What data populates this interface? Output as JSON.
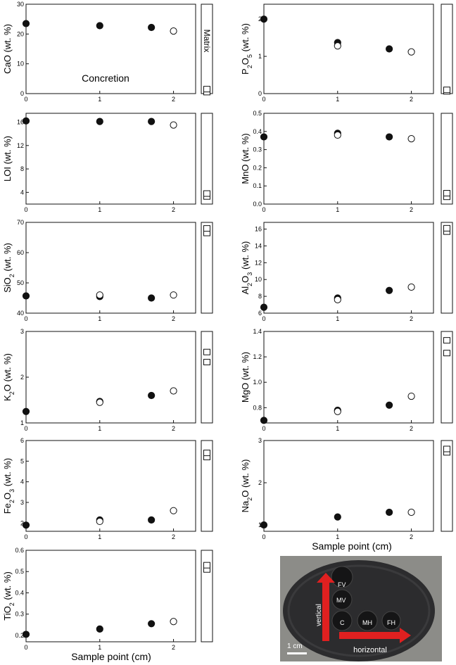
{
  "colors": {
    "filled": "#111111",
    "open": "#ffffff",
    "stroke": "#111111",
    "photo_bg": "#8c8c88",
    "arrow": "#e02020"
  },
  "labels": {
    "matrix": "Matrix",
    "concretion": "Concretion",
    "xlabel": "Sample point (cm)"
  },
  "chart_data": [
    {
      "type": "scatter",
      "ylabel": "CaO (wt. %)",
      "ylim": [
        0,
        30
      ],
      "yticks": [
        0,
        10,
        20,
        30
      ],
      "xlim": [
        0,
        2.3
      ],
      "xticks": [
        0,
        1,
        2
      ],
      "series": [
        {
          "filled": true,
          "points": [
            [
              0,
              23.5
            ],
            [
              1,
              22.8
            ],
            [
              1.7,
              22.2
            ]
          ]
        },
        {
          "filled": false,
          "points": [
            [
              2,
              21.0
            ]
          ]
        }
      ],
      "matrix": [
        0.5,
        1.5
      ]
    },
    {
      "type": "scatter",
      "ylabel": "P2O5 (wt. %)",
      "ylim": [
        0,
        2.4
      ],
      "yticks": [
        0,
        1,
        2
      ],
      "xlim": [
        0,
        2.3
      ],
      "xticks": [
        0,
        1,
        2
      ],
      "series": [
        {
          "filled": true,
          "points": [
            [
              0,
              2.0
            ],
            [
              1,
              1.37
            ],
            [
              1.7,
              1.2
            ]
          ]
        },
        {
          "filled": false,
          "points": [
            [
              1,
              1.28
            ],
            [
              2,
              1.12
            ]
          ]
        }
      ],
      "matrix": [
        0.06,
        0.1
      ]
    },
    {
      "type": "scatter",
      "ylabel": "LOI (wt. %)",
      "ylim": [
        2,
        17.5
      ],
      "yticks": [
        4,
        8,
        12,
        16
      ],
      "xlim": [
        0,
        2.3
      ],
      "xticks": [
        0,
        1,
        2
      ],
      "series": [
        {
          "filled": true,
          "points": [
            [
              0,
              16.2
            ],
            [
              1,
              16.1
            ],
            [
              1.7,
              16.1
            ]
          ]
        },
        {
          "filled": false,
          "points": [
            [
              2,
              15.5
            ]
          ]
        }
      ],
      "matrix": [
        3.3,
        3.8
      ]
    },
    {
      "type": "scatter",
      "ylabel": "MnO (wt. %)",
      "ylim": [
        0,
        0.5
      ],
      "yticks": [
        0,
        0.1,
        0.2,
        0.3,
        0.4,
        0.5
      ],
      "xlim": [
        0,
        2.3
      ],
      "xticks": [
        0,
        1,
        2
      ],
      "series": [
        {
          "filled": true,
          "points": [
            [
              0,
              0.37
            ],
            [
              1,
              0.39
            ],
            [
              1.7,
              0.37
            ]
          ]
        },
        {
          "filled": false,
          "points": [
            [
              1,
              0.38
            ],
            [
              2,
              0.36
            ]
          ]
        }
      ],
      "matrix": [
        0.04,
        0.06
      ]
    },
    {
      "type": "scatter",
      "ylabel": "SiO2 (wt. %)",
      "ylim": [
        40,
        70
      ],
      "yticks": [
        40,
        50,
        60,
        70
      ],
      "xlim": [
        0,
        2.3
      ],
      "xticks": [
        0,
        1,
        2
      ],
      "series": [
        {
          "filled": true,
          "points": [
            [
              0,
              45.7
            ],
            [
              1,
              45.5
            ],
            [
              1.7,
              45.0
            ]
          ]
        },
        {
          "filled": false,
          "points": [
            [
              1,
              46.0
            ],
            [
              2,
              46.0
            ]
          ]
        }
      ],
      "matrix": [
        66.5,
        68.0
      ]
    },
    {
      "type": "scatter",
      "ylabel": "Al2O3 (wt. %)",
      "ylim": [
        6,
        16.8
      ],
      "yticks": [
        6,
        8,
        10,
        12,
        14,
        16
      ],
      "xlim": [
        0,
        2.3
      ],
      "xticks": [
        0,
        1,
        2
      ],
      "series": [
        {
          "filled": true,
          "points": [
            [
              0,
              6.7
            ],
            [
              1,
              7.8
            ],
            [
              1.7,
              8.7
            ]
          ]
        },
        {
          "filled": false,
          "points": [
            [
              1,
              7.6
            ],
            [
              2,
              9.1
            ]
          ]
        }
      ],
      "matrix": [
        15.7,
        16.1
      ]
    },
    {
      "type": "scatter",
      "ylabel": "K2O (wt. %)",
      "ylim": [
        1,
        3
      ],
      "yticks": [
        1,
        2,
        3
      ],
      "xlim": [
        0,
        2.3
      ],
      "xticks": [
        0,
        1,
        2
      ],
      "series": [
        {
          "filled": true,
          "points": [
            [
              0,
              1.25
            ],
            [
              1,
              1.47
            ],
            [
              1.7,
              1.6
            ]
          ]
        },
        {
          "filled": false,
          "points": [
            [
              1,
              1.45
            ],
            [
              2,
              1.7
            ]
          ]
        }
      ],
      "matrix": [
        2.33,
        2.55
      ]
    },
    {
      "type": "scatter",
      "ylabel": "MgO (wt. %)",
      "ylim": [
        0.68,
        1.4
      ],
      "yticks": [
        0.8,
        1.0,
        1.2,
        1.4
      ],
      "xlim": [
        0,
        2.3
      ],
      "xticks": [
        0,
        1,
        2
      ],
      "series": [
        {
          "filled": true,
          "points": [
            [
              0,
              0.7
            ],
            [
              1,
              0.78
            ],
            [
              1.7,
              0.82
            ]
          ]
        },
        {
          "filled": false,
          "points": [
            [
              1,
              0.77
            ],
            [
              2,
              0.89
            ]
          ]
        }
      ],
      "matrix": [
        1.23,
        1.33
      ]
    },
    {
      "type": "scatter",
      "ylabel": "Fe2O3 (wt. %)",
      "ylim": [
        1.6,
        6
      ],
      "yticks": [
        2,
        3,
        4,
        5,
        6
      ],
      "xlim": [
        0,
        2.3
      ],
      "xticks": [
        0,
        1,
        2
      ],
      "series": [
        {
          "filled": true,
          "points": [
            [
              0,
              1.9
            ],
            [
              1,
              2.15
            ],
            [
              1.7,
              2.15
            ]
          ]
        },
        {
          "filled": false,
          "points": [
            [
              1,
              2.08
            ],
            [
              2,
              2.6
            ]
          ]
        }
      ],
      "matrix": [
        5.2,
        5.4
      ]
    },
    {
      "type": "scatter",
      "ylabel": "Na2O (wt. %)",
      "ylim": [
        0.85,
        3
      ],
      "yticks": [
        1,
        2,
        3
      ],
      "xlim": [
        0,
        2.3
      ],
      "xticks": [
        0,
        1,
        2
      ],
      "series": [
        {
          "filled": true,
          "points": [
            [
              0,
              1.0
            ],
            [
              1,
              1.19
            ],
            [
              1.7,
              1.3
            ]
          ]
        },
        {
          "filled": false,
          "points": [
            [
              2,
              1.3
            ]
          ]
        }
      ],
      "matrix": [
        2.72,
        2.8
      ]
    },
    {
      "type": "scatter",
      "ylabel": "TiO2 (wt. %)",
      "ylim": [
        0.17,
        0.6
      ],
      "yticks": [
        0.2,
        0.3,
        0.4,
        0.5,
        0.6
      ],
      "xlim": [
        0,
        2.3
      ],
      "xticks": [
        0,
        1,
        2
      ],
      "series": [
        {
          "filled": true,
          "points": [
            [
              0,
              0.205
            ],
            [
              1,
              0.23
            ],
            [
              1.7,
              0.255
            ]
          ]
        },
        {
          "filled": false,
          "points": [
            [
              2,
              0.265
            ]
          ]
        }
      ],
      "matrix": [
        0.51,
        0.53
      ]
    }
  ],
  "photo": {
    "labels": {
      "fv": "FV",
      "mv": "MV",
      "c": "C",
      "mh": "MH",
      "fh": "FH"
    },
    "vertical": "vertical",
    "horizontal": "horizontal",
    "scale": "1 cm"
  }
}
